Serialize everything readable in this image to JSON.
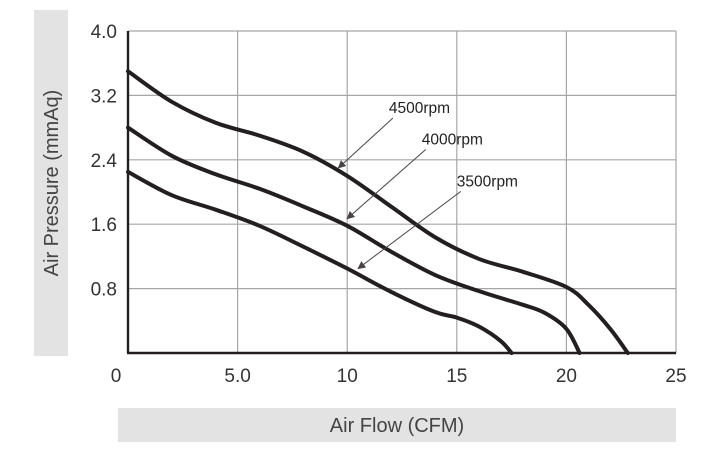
{
  "chart_data": {
    "type": "line",
    "xlabel": "Air Flow (CFM)",
    "ylabel": "Air Pressure (mmAq)",
    "xlim": [
      0,
      25
    ],
    "ylim": [
      0,
      4.0
    ],
    "x_tick_values": [
      0,
      5,
      10,
      15,
      20,
      25
    ],
    "x_tick_labels": [
      "0",
      "5.0",
      "10",
      "15",
      "20",
      "25"
    ],
    "y_tick_values": [
      0.8,
      1.6,
      2.4,
      3.2,
      4.0
    ],
    "y_tick_labels": [
      "0.8",
      "1.6",
      "2.4",
      "3.2",
      "4.0"
    ],
    "grid": true,
    "colors": {
      "curve": "#231f20",
      "grid": "#a6a6a6",
      "axis_title_band": "#e3e3e3",
      "arrow": "#4a4444"
    },
    "series": [
      {
        "name": "4500rpm",
        "points": [
          [
            0,
            3.5
          ],
          [
            2,
            3.12
          ],
          [
            4,
            2.86
          ],
          [
            6,
            2.7
          ],
          [
            8,
            2.5
          ],
          [
            10,
            2.2
          ],
          [
            12,
            1.82
          ],
          [
            14,
            1.44
          ],
          [
            16,
            1.17
          ],
          [
            18,
            1.01
          ],
          [
            20,
            0.82
          ],
          [
            21,
            0.6
          ],
          [
            22,
            0.3
          ],
          [
            22.8,
            0
          ]
        ]
      },
      {
        "name": "4000rpm",
        "points": [
          [
            0,
            2.8
          ],
          [
            2,
            2.45
          ],
          [
            4,
            2.22
          ],
          [
            6,
            2.04
          ],
          [
            8,
            1.82
          ],
          [
            10,
            1.58
          ],
          [
            12,
            1.26
          ],
          [
            14,
            0.97
          ],
          [
            16,
            0.77
          ],
          [
            18,
            0.6
          ],
          [
            19,
            0.5
          ],
          [
            20,
            0.3
          ],
          [
            20.6,
            0
          ]
        ]
      },
      {
        "name": "3500rpm",
        "points": [
          [
            0,
            2.25
          ],
          [
            2,
            1.96
          ],
          [
            4,
            1.78
          ],
          [
            6,
            1.58
          ],
          [
            8,
            1.32
          ],
          [
            10,
            1.05
          ],
          [
            12,
            0.76
          ],
          [
            14,
            0.51
          ],
          [
            15,
            0.44
          ],
          [
            16,
            0.33
          ],
          [
            17,
            0.15
          ],
          [
            17.5,
            0
          ]
        ]
      }
    ],
    "annotations": [
      {
        "text": "4500rpm",
        "series": "4500rpm",
        "text_x": 11.9,
        "text_y": 2.98,
        "arrow_to": [
          9.6,
          2.3
        ]
      },
      {
        "text": "4000rpm",
        "series": "4000rpm",
        "text_x": 13.4,
        "text_y": 2.59,
        "arrow_to": [
          10.0,
          1.67
        ]
      },
      {
        "text": "3500rpm",
        "series": "3500rpm",
        "text_x": 15.0,
        "text_y": 2.07,
        "arrow_to": [
          10.5,
          1.05
        ]
      }
    ]
  }
}
